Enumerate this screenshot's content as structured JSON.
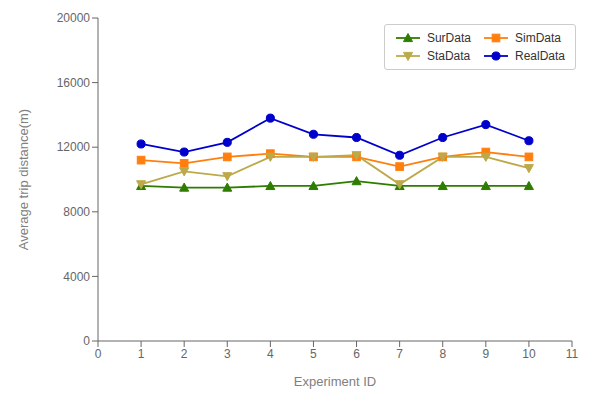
{
  "chart_data": {
    "type": "line",
    "xlabel": "Experiment ID",
    "ylabel": "Average trip distance(m)",
    "x": [
      1,
      2,
      3,
      4,
      5,
      6,
      7,
      8,
      9,
      10
    ],
    "series": [
      {
        "name": "SurData",
        "color": "#2e7d00",
        "marker": "triangle-up",
        "values": [
          9600,
          9500,
          9500,
          9600,
          9600,
          9900,
          9600,
          9600,
          9600,
          9600
        ]
      },
      {
        "name": "SimData",
        "color": "#ff7f0e",
        "marker": "square",
        "values": [
          11200,
          11000,
          11400,
          11600,
          11400,
          11400,
          10800,
          11400,
          11700,
          11400
        ]
      },
      {
        "name": "StaData",
        "color": "#bcaa4a",
        "marker": "triangle-down",
        "values": [
          9700,
          10500,
          10200,
          11400,
          11400,
          11500,
          9700,
          11400,
          11400,
          10700
        ]
      },
      {
        "name": "RealData",
        "color": "#0000cc",
        "marker": "circle",
        "values": [
          12200,
          11700,
          12300,
          13800,
          12800,
          12600,
          11500,
          12600,
          13400,
          12400
        ]
      }
    ],
    "xlim": [
      0,
      11
    ],
    "xticks": [
      0,
      1,
      2,
      3,
      4,
      5,
      6,
      7,
      8,
      9,
      10,
      11
    ],
    "ylim": [
      0,
      20000
    ],
    "yticks": [
      0,
      4000,
      8000,
      12000,
      16000,
      20000
    ],
    "grid": false,
    "legend": "upper right"
  }
}
